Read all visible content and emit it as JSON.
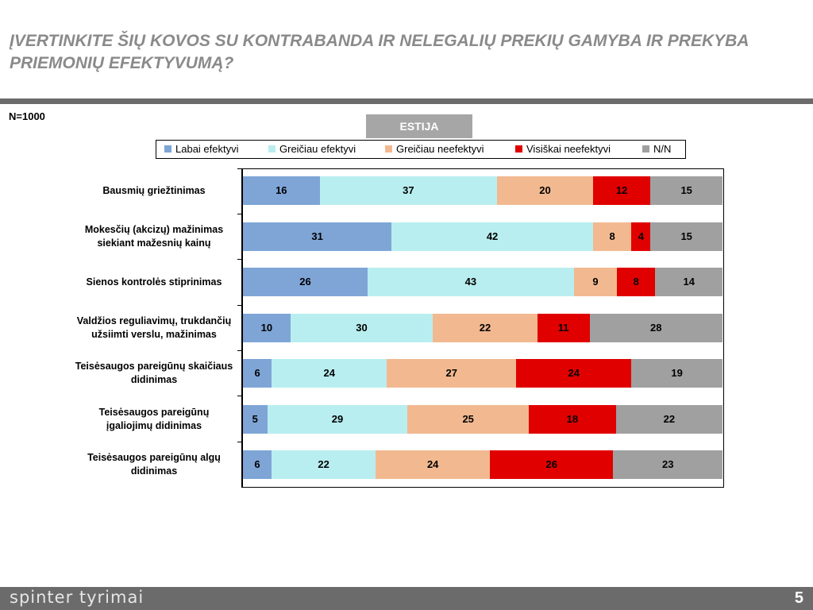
{
  "header": {
    "title": "ĮVERTINKITE ŠIŲ KOVOS SU KONTRABANDA IR NELEGALIŲ PREKIŲ GAMYBA IR PREKYBA PRIEMONIŲ EFEKTYVUMĄ?",
    "sample": "N=1000",
    "country": "ESTIJA"
  },
  "footer": {
    "brand": "spinter tyrimai",
    "page": "5"
  },
  "colors": {
    "title": "#8a8a8a",
    "rule": "#6b6b6b",
    "tab": "#a6a6a6"
  },
  "chart_data": {
    "type": "bar",
    "orientation": "horizontal",
    "stacked": true,
    "percent_stacked": true,
    "legend_position": "top",
    "categories": [
      "Bausmių griežtinimas",
      "Mokesčių (akcizų) mažinimas siekiant mažesnių kainų",
      "Sienos kontrolės stiprinimas",
      "Valdžios reguliavimų, trukdančių užsiimti verslu, mažinimas",
      "Teisėsaugos pareigūnų skaičiaus didinimas",
      "Teisėsaugos pareigūnų įgaliojimų didinimas",
      "Teisėsaugos pareigūnų algų didinimas"
    ],
    "series": [
      {
        "name": "Labai efektyvi",
        "color": "#7ea5d6",
        "values": [
          16,
          31,
          26,
          10,
          6,
          5,
          6
        ]
      },
      {
        "name": "Greičiau efektyvi",
        "color": "#b9eef0",
        "values": [
          37,
          42,
          43,
          30,
          24,
          29,
          22
        ]
      },
      {
        "name": "Greičiau neefektyvi",
        "color": "#f2b990",
        "values": [
          20,
          8,
          9,
          22,
          27,
          25,
          24
        ]
      },
      {
        "name": "Visiškai neefektyvi",
        "color": "#e00000",
        "values": [
          12,
          4,
          8,
          11,
          24,
          18,
          26
        ]
      },
      {
        "name": "N/N",
        "color": "#a0a0a0",
        "values": [
          15,
          15,
          14,
          28,
          19,
          22,
          23
        ]
      }
    ]
  }
}
